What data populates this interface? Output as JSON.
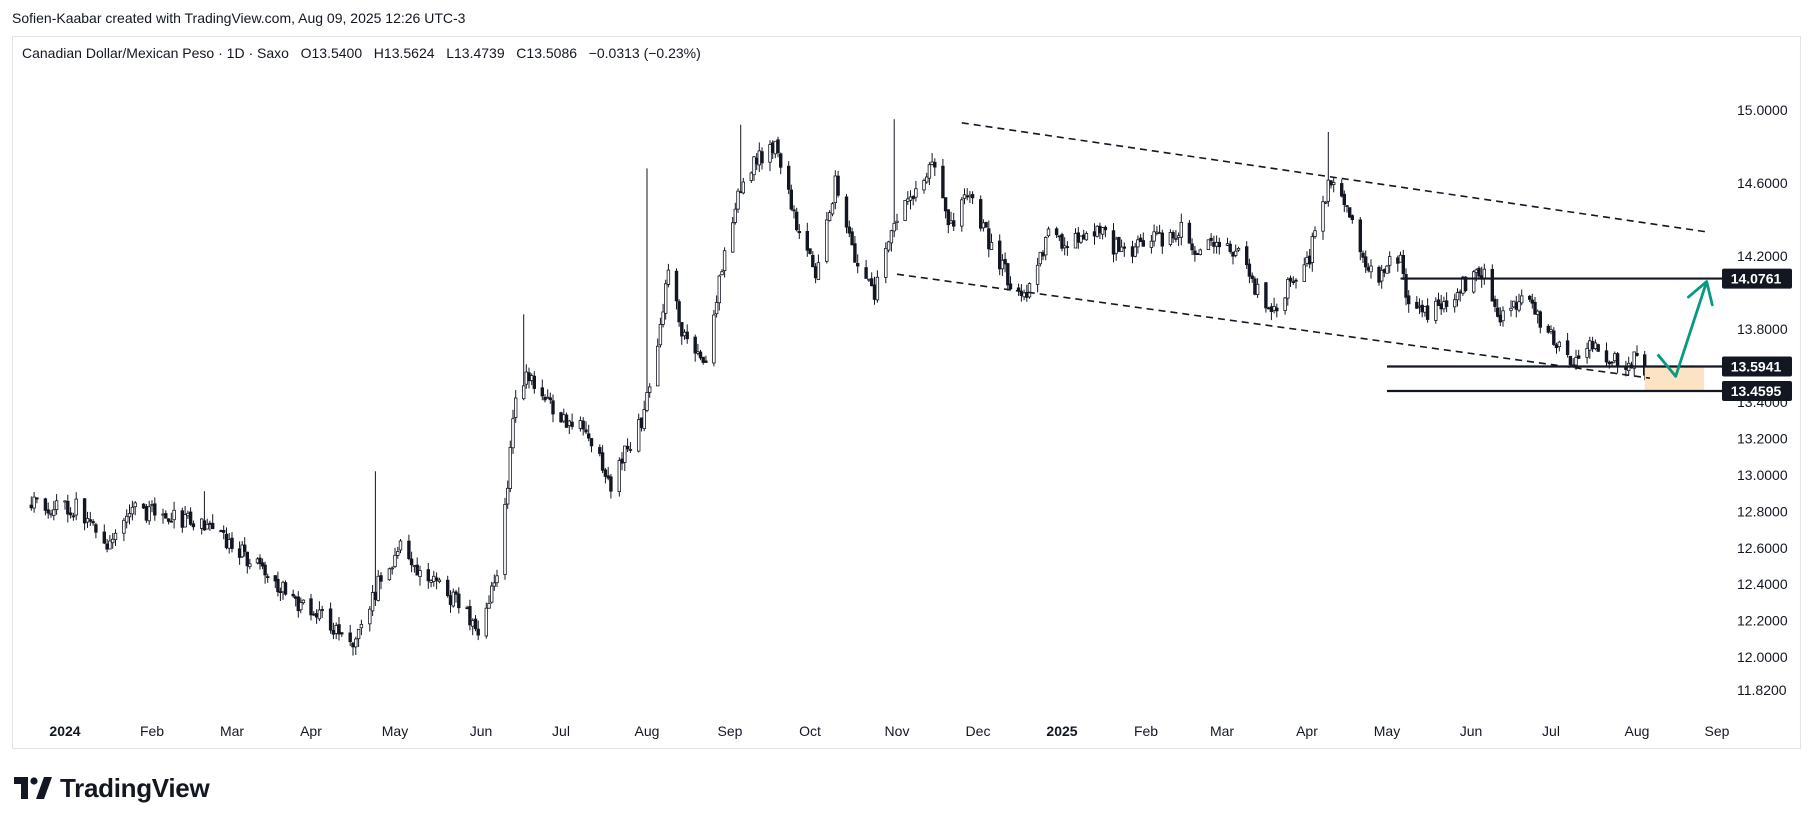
{
  "credit": "Sofien-Kaabar created with TradingView.com, Aug 09, 2025 12:26 UTC-3",
  "legend": {
    "symbol": "Canadian Dollar/Mexican Peso",
    "sep1": "·",
    "interval": "1D",
    "sep2": "·",
    "source": "Saxo",
    "open_label": "O",
    "open": "13.5400",
    "high_label": "H",
    "high": "13.5624",
    "low_label": "L",
    "low": "13.4739",
    "close_label": "C",
    "close": "13.5086",
    "change": "−0.0313 (−0.23%)"
  },
  "brand": {
    "name": "TradingView",
    "icon": "tradingview-logo-icon"
  },
  "colors": {
    "up": "#131722",
    "down": "#131722",
    "arrow": "#089981",
    "zone": "#fbe3c4",
    "grid": "#ffffff",
    "axis_text": "#131722"
  },
  "chart_data": {
    "type": "candlestick",
    "title": "",
    "ylim": [
      11.7,
      15.12
    ],
    "y_ticks": [
      "15.0000",
      "14.6000",
      "14.2000",
      "13.8000",
      "13.4000",
      "13.2000",
      "13.0000",
      "12.8000",
      "12.6000",
      "12.4000",
      "12.2000",
      "12.0000",
      "11.8200"
    ],
    "x_ticks": [
      {
        "label": "2024",
        "bold": true
      },
      {
        "label": "Feb",
        "bold": false
      },
      {
        "label": "Mar",
        "bold": false
      },
      {
        "label": "Apr",
        "bold": false
      },
      {
        "label": "May",
        "bold": false
      },
      {
        "label": "Jun",
        "bold": false
      },
      {
        "label": "Jul",
        "bold": false
      },
      {
        "label": "Aug",
        "bold": false
      },
      {
        "label": "Sep",
        "bold": false
      },
      {
        "label": "Oct",
        "bold": false
      },
      {
        "label": "Nov",
        "bold": false
      },
      {
        "label": "Dec",
        "bold": false
      },
      {
        "label": "2025",
        "bold": true
      },
      {
        "label": "Feb",
        "bold": false
      },
      {
        "label": "Mar",
        "bold": false
      },
      {
        "label": "Apr",
        "bold": false
      },
      {
        "label": "May",
        "bold": false
      },
      {
        "label": "Jun",
        "bold": false
      },
      {
        "label": "Jul",
        "bold": false
      },
      {
        "label": "Aug",
        "bold": false
      },
      {
        "label": "Sep",
        "bold": false
      }
    ],
    "price_path": [
      {
        "date": "2023-12-20",
        "close": 12.83
      },
      {
        "date": "2024-01-05",
        "close": 12.82
      },
      {
        "date": "2024-01-15",
        "close": 12.6
      },
      {
        "date": "2024-01-26",
        "close": 12.8
      },
      {
        "date": "2024-02-09",
        "close": 12.78
      },
      {
        "date": "2024-02-23",
        "close": 12.68
      },
      {
        "date": "2024-03-08",
        "close": 12.54
      },
      {
        "date": "2024-03-22",
        "close": 12.35
      },
      {
        "date": "2024-04-05",
        "close": 12.22
      },
      {
        "date": "2024-04-16",
        "close": 12.02
      },
      {
        "date": "2024-04-26",
        "close": 12.44
      },
      {
        "date": "2024-05-03",
        "close": 12.6
      },
      {
        "date": "2024-05-13",
        "close": 12.42
      },
      {
        "date": "2024-05-24",
        "close": 12.3
      },
      {
        "date": "2024-05-31",
        "close": 12.15
      },
      {
        "date": "2024-06-07",
        "close": 12.45
      },
      {
        "date": "2024-06-11",
        "close": 12.95
      },
      {
        "date": "2024-06-14",
        "close": 13.45
      },
      {
        "date": "2024-06-19",
        "close": 13.55
      },
      {
        "date": "2024-06-28",
        "close": 13.35
      },
      {
        "date": "2024-07-10",
        "close": 13.25
      },
      {
        "date": "2024-07-19",
        "close": 12.95
      },
      {
        "date": "2024-07-30",
        "close": 13.3
      },
      {
        "date": "2024-08-05",
        "close": 13.7
      },
      {
        "date": "2024-08-09",
        "close": 14.1
      },
      {
        "date": "2024-08-15",
        "close": 13.75
      },
      {
        "date": "2024-08-23",
        "close": 13.62
      },
      {
        "date": "2024-08-30",
        "close": 14.25
      },
      {
        "date": "2024-09-06",
        "close": 14.65
      },
      {
        "date": "2024-09-18",
        "close": 14.82
      },
      {
        "date": "2024-09-27",
        "close": 14.3
      },
      {
        "date": "2024-10-03",
        "close": 14.1
      },
      {
        "date": "2024-10-10",
        "close": 14.6
      },
      {
        "date": "2024-10-17",
        "close": 14.2
      },
      {
        "date": "2024-10-24",
        "close": 14.0
      },
      {
        "date": "2024-10-31",
        "close": 14.4
      },
      {
        "date": "2024-11-07",
        "close": 14.55
      },
      {
        "date": "2024-11-14",
        "close": 14.7
      },
      {
        "date": "2024-11-21",
        "close": 14.35
      },
      {
        "date": "2024-11-28",
        "close": 14.55
      },
      {
        "date": "2024-12-06",
        "close": 14.25
      },
      {
        "date": "2024-12-13",
        "close": 14.05
      },
      {
        "date": "2024-12-20",
        "close": 14.0
      },
      {
        "date": "2024-12-27",
        "close": 14.3
      },
      {
        "date": "2025-01-03",
        "close": 14.25
      },
      {
        "date": "2025-01-10",
        "close": 14.35
      },
      {
        "date": "2025-01-17",
        "close": 14.3
      },
      {
        "date": "2025-01-24",
        "close": 14.2
      },
      {
        "date": "2025-01-31",
        "close": 14.3
      },
      {
        "date": "2025-02-07",
        "close": 14.3
      },
      {
        "date": "2025-02-14",
        "close": 14.35
      },
      {
        "date": "2025-02-21",
        "close": 14.2
      },
      {
        "date": "2025-02-28",
        "close": 14.3
      },
      {
        "date": "2025-03-07",
        "close": 14.2
      },
      {
        "date": "2025-03-14",
        "close": 14.0
      },
      {
        "date": "2025-03-19",
        "close": 13.85
      },
      {
        "date": "2025-03-26",
        "close": 14.05
      },
      {
        "date": "2025-04-02",
        "close": 14.2
      },
      {
        "date": "2025-04-09",
        "close": 14.6
      },
      {
        "date": "2025-04-14",
        "close": 14.55
      },
      {
        "date": "2025-04-21",
        "close": 14.2
      },
      {
        "date": "2025-04-28",
        "close": 14.1
      },
      {
        "date": "2025-05-06",
        "close": 14.2
      },
      {
        "date": "2025-05-09",
        "close": 13.92
      },
      {
        "date": "2025-05-16",
        "close": 13.9
      },
      {
        "date": "2025-05-23",
        "close": 13.95
      },
      {
        "date": "2025-05-30",
        "close": 14.05
      },
      {
        "date": "2025-06-06",
        "close": 14.1
      },
      {
        "date": "2025-06-11",
        "close": 13.85
      },
      {
        "date": "2025-06-18",
        "close": 13.95
      },
      {
        "date": "2025-06-25",
        "close": 13.9
      },
      {
        "date": "2025-07-02",
        "close": 13.75
      },
      {
        "date": "2025-07-09",
        "close": 13.62
      },
      {
        "date": "2025-07-16",
        "close": 13.7
      },
      {
        "date": "2025-07-23",
        "close": 13.65
      },
      {
        "date": "2025-07-30",
        "close": 13.6
      },
      {
        "date": "2025-08-01",
        "close": 13.7
      },
      {
        "date": "2025-08-05",
        "close": 13.56
      },
      {
        "date": "2025-08-08",
        "close": 13.5086
      }
    ],
    "wick_spikes": [
      {
        "date": "2024-02-20",
        "high": 12.91
      },
      {
        "date": "2024-04-24",
        "high": 13.02
      },
      {
        "date": "2024-06-17",
        "high": 13.88
      },
      {
        "date": "2024-08-01",
        "high": 14.68
      },
      {
        "date": "2024-09-05",
        "high": 14.92
      },
      {
        "date": "2024-10-31",
        "high": 14.95
      },
      {
        "date": "2025-04-09",
        "high": 14.88
      }
    ],
    "trendlines": [
      {
        "name": "upper-channel",
        "style": "dashed",
        "from": {
          "date": "2024-11-25",
          "price": 14.93
        },
        "to": {
          "date": "2025-08-29",
          "price": 14.33
        }
      },
      {
        "name": "lower-channel",
        "style": "dashed",
        "from": {
          "date": "2024-11-01",
          "price": 14.1
        },
        "to": {
          "date": "2025-08-06",
          "price": 13.53
        }
      }
    ],
    "horizontal_levels": [
      {
        "name": "resistance-level",
        "price": 14.0761,
        "label": "14.0761",
        "from_date": "2025-05-06"
      },
      {
        "name": "support-level-upper",
        "price": 13.5941,
        "label": "13.5941",
        "from_date": "2025-05-01"
      },
      {
        "name": "support-level-lower",
        "price": 13.4595,
        "label": "13.4595",
        "from_date": "2025-05-01"
      }
    ],
    "support_zone": {
      "from_date": "2025-08-04",
      "to_date": "2025-08-27",
      "top": 13.5941,
      "bottom": 13.4595
    },
    "projection_arrow": {
      "points": [
        {
          "date": "2025-08-09",
          "price": 13.66
        },
        {
          "date": "2025-08-16",
          "price": 13.54
        },
        {
          "date": "2025-08-28",
          "price": 14.06
        }
      ]
    }
  }
}
